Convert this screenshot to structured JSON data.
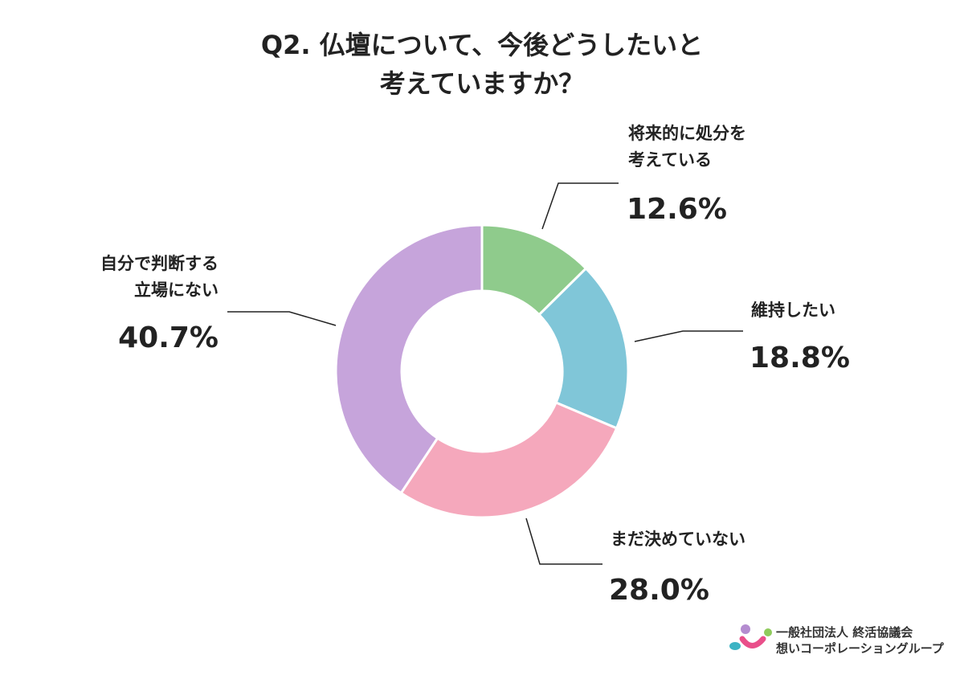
{
  "chart_data": {
    "type": "donut",
    "title": "Q2. 仏壇について、今後どうしたいと\n考えていますか？",
    "categories": [
      "将来的に処分を\n考えている",
      "維持したい",
      "まだ決めていない",
      "自分で判断する\n立場にない"
    ],
    "values": [
      12.6,
      18.8,
      28,
      40.7
    ],
    "value_labels": [
      "12.6%",
      "18.8%",
      "28.0%",
      "40.7%"
    ],
    "colors": [
      "#8fcb8c",
      "#80c6d8",
      "#f5a8bc",
      "#c6a4db"
    ]
  },
  "logo": {
    "line1": "一般社団法人 終活協議会",
    "line2": "想いコーポレーショングループ"
  }
}
